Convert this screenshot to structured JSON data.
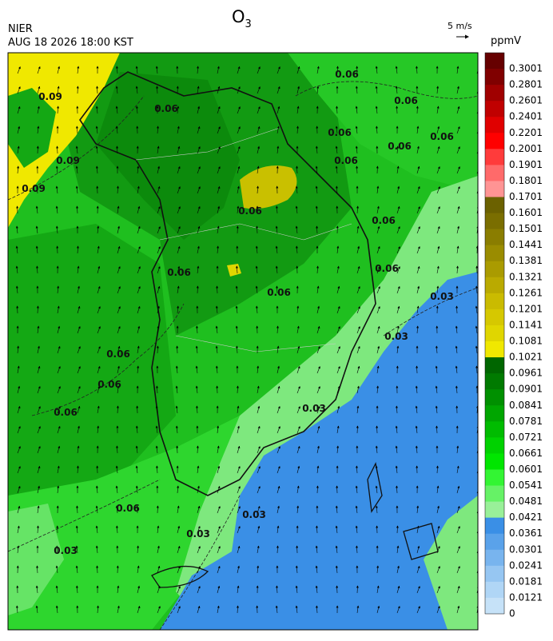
{
  "header": {
    "title": "O",
    "title_sub": "3",
    "agency": "NIER",
    "datetime": "AUG 18 2026 18:00 KST",
    "wind_scale": "5 m/s"
  },
  "legend": {
    "unit": "ppmV",
    "items": [
      {
        "label": "0.3001",
        "color": "#660000"
      },
      {
        "label": "0.2801",
        "color": "#800000"
      },
      {
        "label": "0.2601",
        "color": "#a00000"
      },
      {
        "label": "0.2401",
        "color": "#c00000"
      },
      {
        "label": "0.2201",
        "color": "#e00000"
      },
      {
        "label": "0.2001",
        "color": "#ff0000"
      },
      {
        "label": "0.1901",
        "color": "#ff3b3b"
      },
      {
        "label": "0.1801",
        "color": "#ff6a6a"
      },
      {
        "label": "0.1701",
        "color": "#ff9494"
      },
      {
        "label": "0.1601",
        "color": "#6b6100"
      },
      {
        "label": "0.1501",
        "color": "#7a6e00"
      },
      {
        "label": "0.1441",
        "color": "#8a7d00"
      },
      {
        "label": "0.1381",
        "color": "#9a8c00"
      },
      {
        "label": "0.1321",
        "color": "#aa9b00"
      },
      {
        "label": "0.1261",
        "color": "#baaa00"
      },
      {
        "label": "0.1201",
        "color": "#cabb00"
      },
      {
        "label": "0.1141",
        "color": "#d6c800"
      },
      {
        "label": "0.1081",
        "color": "#e0d600"
      },
      {
        "label": "0.1021",
        "color": "#f0e800"
      },
      {
        "label": "0.0961",
        "color": "#006600"
      },
      {
        "label": "0.0901",
        "color": "#007a00"
      },
      {
        "label": "0.0841",
        "color": "#009000"
      },
      {
        "label": "0.0781",
        "color": "#00a600"
      },
      {
        "label": "0.0721",
        "color": "#00bc00"
      },
      {
        "label": "0.0661",
        "color": "#00d200"
      },
      {
        "label": "0.0601",
        "color": "#00e600"
      },
      {
        "label": "0.0541",
        "color": "#33f533"
      },
      {
        "label": "0.0481",
        "color": "#66f266"
      },
      {
        "label": "0.0421",
        "color": "#99f099"
      },
      {
        "label": "0.0361",
        "color": "#3a8fe6"
      },
      {
        "label": "0.0301",
        "color": "#5aa2ea"
      },
      {
        "label": "0.0241",
        "color": "#78b4ee"
      },
      {
        "label": "0.0181",
        "color": "#96c6f2"
      },
      {
        "label": "0.0121",
        "color": "#b0d6f6"
      }
    ],
    "bottom_label": "0"
  },
  "map": {
    "contour_labels": [
      "0.06",
      "0.06",
      "0.06",
      "0.06",
      "0.06",
      "0.06",
      "0.09",
      "0.09",
      "0.09",
      "0.06",
      "0.06",
      "0.06",
      "0.06",
      "0.06",
      "0.06",
      "0.06",
      "0.06",
      "0.06",
      "0.06",
      "0.03",
      "0.03",
      "0.03",
      "0.03",
      "0.03",
      "0.03"
    ]
  }
}
